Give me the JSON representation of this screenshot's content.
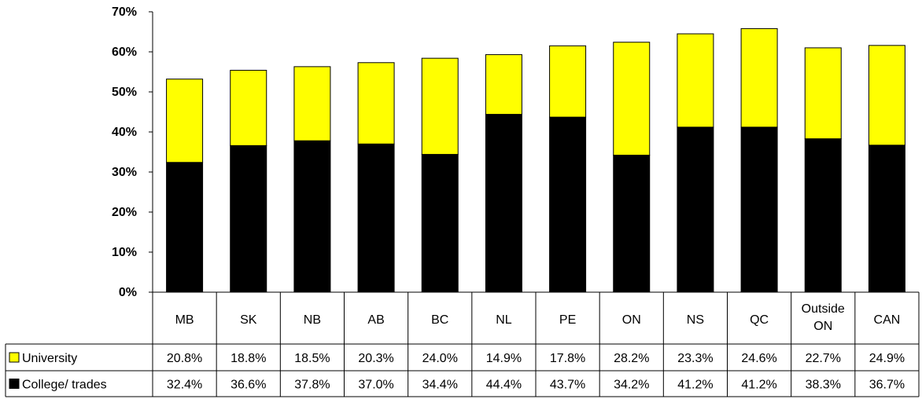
{
  "chart_data": {
    "type": "bar",
    "stacked": true,
    "categories": [
      "MB",
      "SK",
      "NB",
      "AB",
      "BC",
      "NL",
      "PE",
      "ON",
      "NS",
      "QC",
      "Outside ON",
      "CAN"
    ],
    "series": [
      {
        "name": "University",
        "color": "#ffff00",
        "values": [
          20.8,
          18.8,
          18.5,
          20.3,
          24.0,
          14.9,
          17.8,
          28.2,
          23.3,
          24.6,
          22.7,
          24.9
        ],
        "labels": [
          "20.8%",
          "18.8%",
          "18.5%",
          "20.3%",
          "24.0%",
          "14.9%",
          "17.8%",
          "28.2%",
          "23.3%",
          "24.6%",
          "22.7%",
          "24.9%"
        ]
      },
      {
        "name": "College/ trades",
        "color": "#000000",
        "values": [
          32.4,
          36.6,
          37.8,
          37.0,
          34.4,
          44.4,
          43.7,
          34.2,
          41.2,
          41.2,
          38.3,
          36.7
        ],
        "labels": [
          "32.4%",
          "36.6%",
          "37.8%",
          "37.0%",
          "34.4%",
          "44.4%",
          "43.7%",
          "34.2%",
          "41.2%",
          "41.2%",
          "38.3%",
          "36.7%"
        ]
      }
    ],
    "ylim": [
      0,
      70
    ],
    "yticks": [
      "0%",
      "10%",
      "20%",
      "30%",
      "40%",
      "50%",
      "60%",
      "70%"
    ],
    "grid": false,
    "legend": "data-table-left"
  }
}
